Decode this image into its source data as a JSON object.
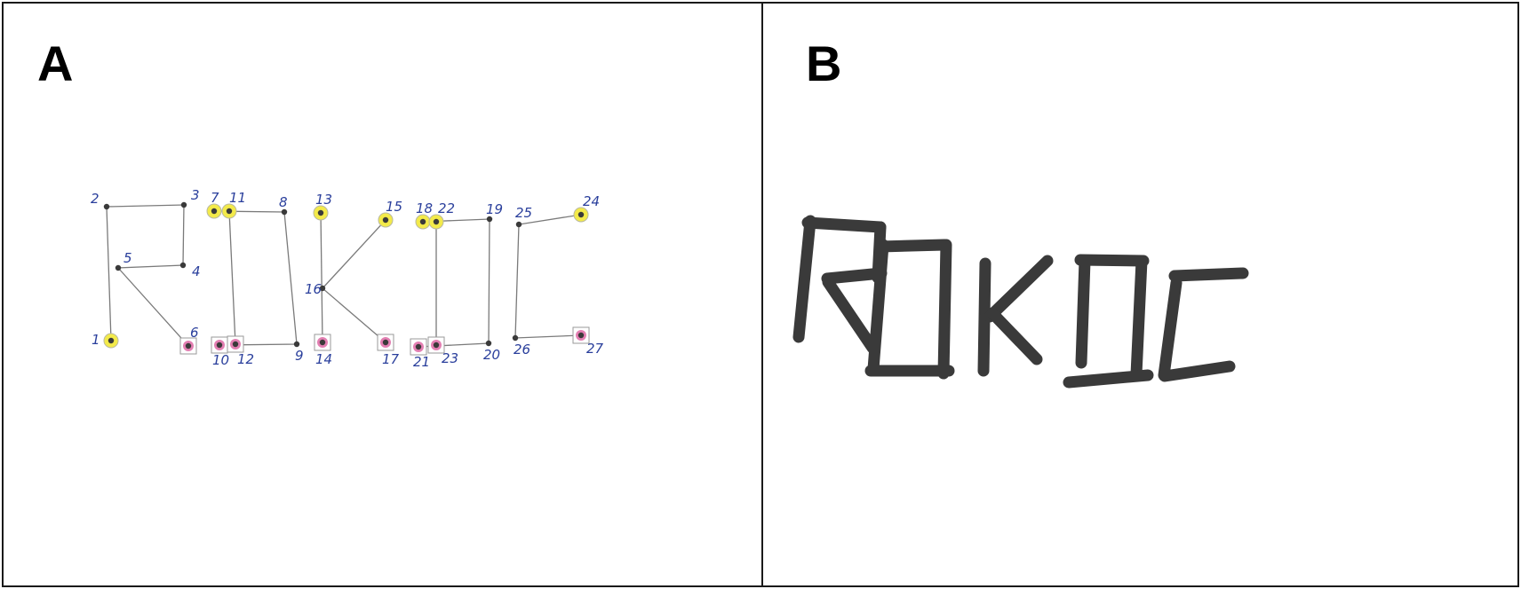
{
  "panels": {
    "a": {
      "label": "A",
      "word": "ROKOC",
      "points": [
        {
          "n": "1",
          "type": "start"
        },
        {
          "n": "2",
          "type": "vertex"
        },
        {
          "n": "3",
          "type": "vertex"
        },
        {
          "n": "4",
          "type": "vertex"
        },
        {
          "n": "5",
          "type": "vertex"
        },
        {
          "n": "6",
          "type": "end"
        },
        {
          "n": "7",
          "type": "start"
        },
        {
          "n": "8",
          "type": "vertex"
        },
        {
          "n": "9",
          "type": "vertex"
        },
        {
          "n": "10",
          "type": "end"
        },
        {
          "n": "11",
          "type": "start"
        },
        {
          "n": "12",
          "type": "end"
        },
        {
          "n": "13",
          "type": "start"
        },
        {
          "n": "14",
          "type": "end"
        },
        {
          "n": "15",
          "type": "start"
        },
        {
          "n": "16",
          "type": "vertex"
        },
        {
          "n": "17",
          "type": "end"
        },
        {
          "n": "18",
          "type": "start"
        },
        {
          "n": "19",
          "type": "vertex"
        },
        {
          "n": "20",
          "type": "vertex"
        },
        {
          "n": "21",
          "type": "end"
        },
        {
          "n": "22",
          "type": "start"
        },
        {
          "n": "23",
          "type": "end"
        },
        {
          "n": "24",
          "type": "start"
        },
        {
          "n": "25",
          "type": "vertex"
        },
        {
          "n": "26",
          "type": "vertex"
        },
        {
          "n": "27",
          "type": "end"
        }
      ],
      "strokes": [
        [
          "1",
          "2",
          "3",
          "4",
          "5",
          "6"
        ],
        [
          "7",
          "8",
          "9",
          "10"
        ],
        [
          "11",
          "12"
        ],
        [
          "13",
          "14"
        ],
        [
          "15",
          "16",
          "17"
        ],
        [
          "18",
          "19",
          "20",
          "21"
        ],
        [
          "22",
          "23"
        ],
        [
          "24",
          "25",
          "26",
          "27"
        ]
      ],
      "colors": {
        "start_fill": "#f3ea4a",
        "end_fill": "#e37fb2",
        "line": "#7a7a7a",
        "dot": "#3a3a3a",
        "number": "#2a3f9c"
      }
    },
    "b": {
      "label": "B",
      "word": "ROKOC",
      "colors": {
        "ink": "#3a3a3a"
      }
    }
  }
}
